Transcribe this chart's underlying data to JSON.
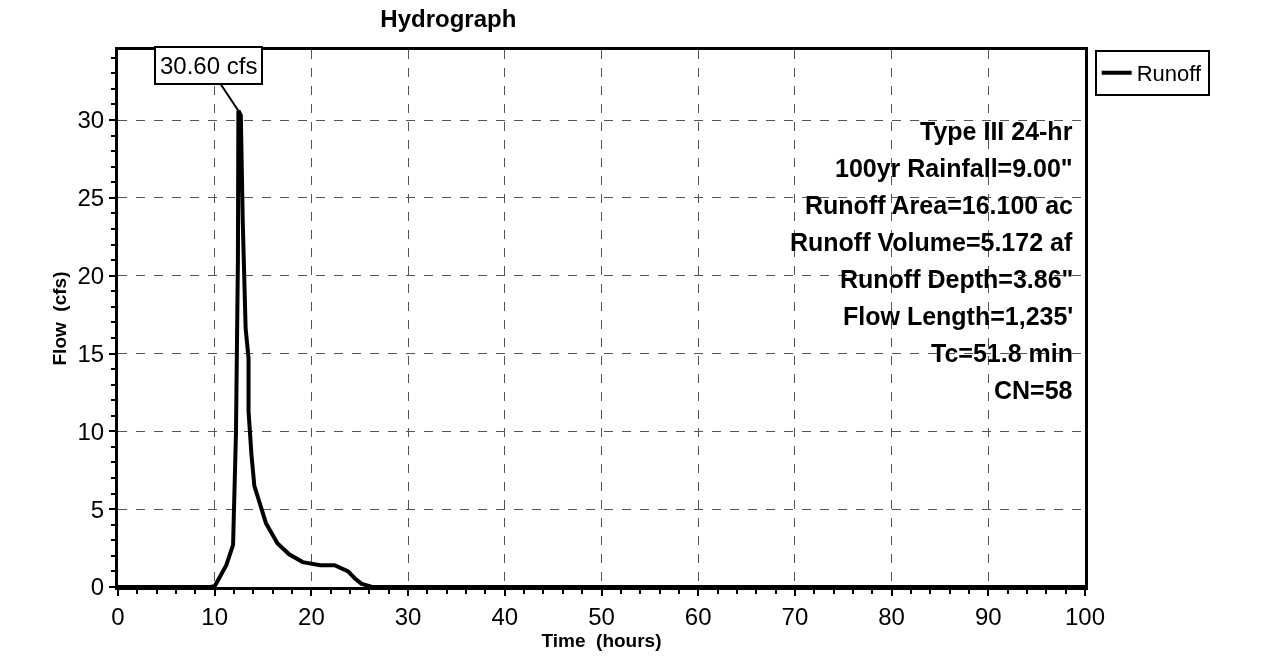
{
  "chart_data": {
    "type": "line",
    "title": "Hydrograph",
    "xlabel": "Time  (hours)",
    "ylabel": "Flow  (cfs)",
    "xlim": [
      0,
      100
    ],
    "xticks": [
      0,
      10,
      20,
      30,
      40,
      50,
      60,
      70,
      80,
      90,
      100
    ],
    "ylim": [
      0,
      34.5
    ],
    "yticks": [
      0,
      5,
      10,
      15,
      20,
      25,
      30
    ],
    "grid": true,
    "legend": "top right",
    "marker": "none",
    "line_style": "solid",
    "series": [
      {
        "name": "Runoff",
        "color": "#000000",
        "x": [
          0,
          9.5,
          10,
          11.2,
          11.9,
          12.2,
          12.4,
          12.45,
          12.7,
          12.9,
          13.2,
          13.5,
          13.5,
          13.8,
          14.1,
          14.5,
          15.3,
          16.5,
          17.7,
          19.1,
          20.9,
          22.4,
          23.8,
          24.5,
          25.2,
          26.2,
          30,
          100
        ],
        "values": [
          0,
          0,
          0.05,
          1.4,
          2.7,
          9.9,
          21,
          30.6,
          30.3,
          23.5,
          16.6,
          14.7,
          11.3,
          8.5,
          6.5,
          5.7,
          4.1,
          2.8,
          2.1,
          1.6,
          1.4,
          1.4,
          1.0,
          0.55,
          0.2,
          0.02,
          0,
          0
        ]
      }
    ],
    "annotations": [
      {
        "text": "30.60 cfs",
        "x": 12.45,
        "y": 30.6
      },
      "Type III 24-hr",
      "100yr Rainfall=9.00\"",
      "Runoff Area=16.100 ac",
      "Runoff Volume=5.172 af",
      "Runoff Depth=3.86\"",
      "Flow Length=1,235'",
      "Tc=51.8 min",
      "CN=58"
    ]
  }
}
